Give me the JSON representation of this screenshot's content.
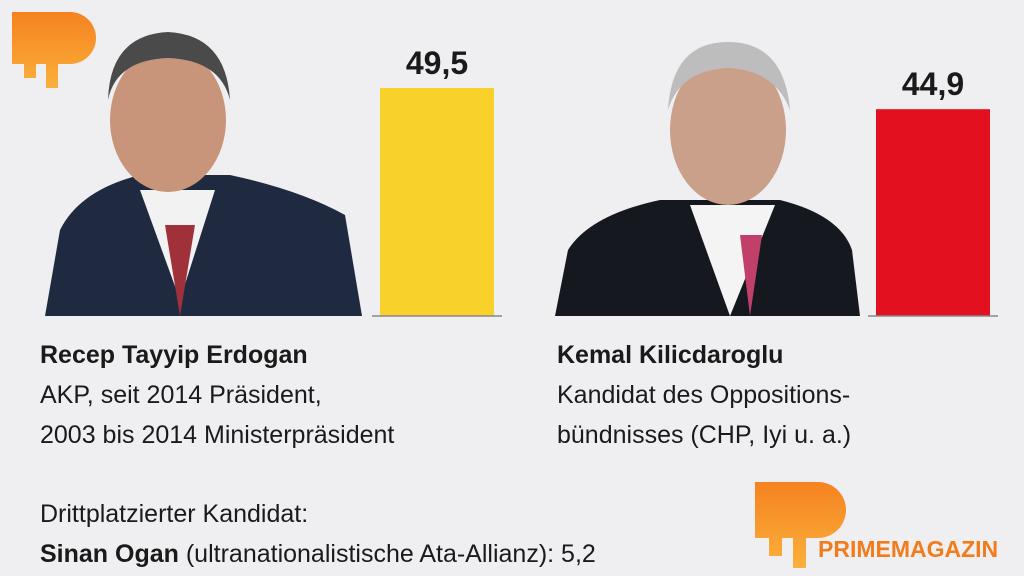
{
  "chart_data": {
    "type": "bar",
    "categories": [
      "Recep Tayyip Erdogan",
      "Kemal Kilicdaroglu"
    ],
    "descriptions": [
      [
        "AKP, seit 2014 Präsident,",
        "2003 bis 2014 Ministerpräsident"
      ],
      [
        "Kandidat des Oppositions-",
        "bündnisses (CHP, Iyi u. a.)"
      ]
    ],
    "values": [
      49.5,
      44.9
    ],
    "value_labels": [
      "49,5",
      "44,9"
    ],
    "colors": [
      "#f8d12a",
      "#e3101f"
    ]
  },
  "third": {
    "heading": "Drittplatzierter Kandidat:",
    "name": "Sinan Ogan",
    "party": "(ultranationalistische Ata-Allianz):",
    "value": 5.2,
    "value_label": "5,2"
  },
  "brand": "PRIMEMAGAZIN"
}
